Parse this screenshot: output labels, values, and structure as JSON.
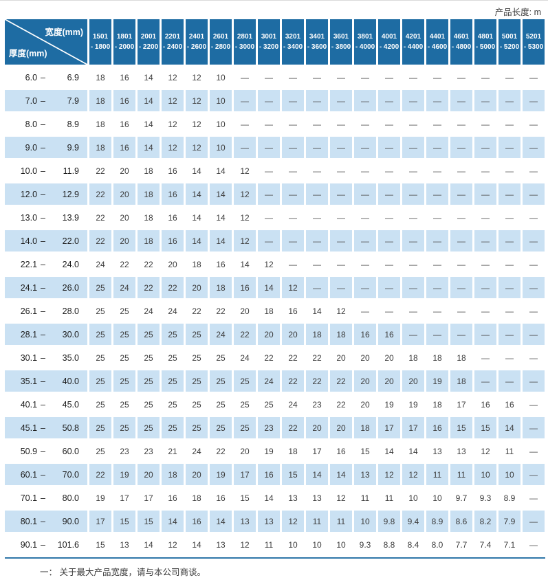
{
  "page": {
    "top_right_label": "产品长度: m",
    "footnote": "一： 关于最大产品宽度，请与本公司商谈。"
  },
  "colors": {
    "header_blue": "#1e6ca3",
    "stripe_blue": "#cae1f3",
    "rule_blue": "#2e76a8"
  },
  "table": {
    "corner": {
      "width_label": "宽度(mm)",
      "thickness_label": "厚度(mm)"
    },
    "width_columns": [
      {
        "line1": "1501",
        "line2": "- 1800"
      },
      {
        "line1": "1801",
        "line2": "- 2000"
      },
      {
        "line1": "2001",
        "line2": "- 2200"
      },
      {
        "line1": "2201",
        "line2": "- 2400"
      },
      {
        "line1": "2401",
        "line2": "- 2600"
      },
      {
        "line1": "2601",
        "line2": "- 2800"
      },
      {
        "line1": "2801",
        "line2": "- 3000"
      },
      {
        "line1": "3001",
        "line2": "- 3200"
      },
      {
        "line1": "3201",
        "line2": "- 3400"
      },
      {
        "line1": "3401",
        "line2": "- 3600"
      },
      {
        "line1": "3601",
        "line2": "- 3800"
      },
      {
        "line1": "3801",
        "line2": "- 4000"
      },
      {
        "line1": "4001",
        "line2": "- 4200"
      },
      {
        "line1": "4201",
        "line2": "- 4400"
      },
      {
        "line1": "4401",
        "line2": "- 4600"
      },
      {
        "line1": "4601",
        "line2": "- 4800"
      },
      {
        "line1": "4801",
        "line2": "- 5000"
      },
      {
        "line1": "5001",
        "line2": "- 5200"
      },
      {
        "line1": "5201",
        "line2": "- 5300"
      }
    ],
    "rows": [
      {
        "from": "6.0",
        "to": "6.9",
        "values": [
          "18",
          "16",
          "14",
          "12",
          "12",
          "10",
          "—",
          "—",
          "—",
          "—",
          "—",
          "—",
          "—",
          "—",
          "—",
          "—",
          "—",
          "—",
          "—"
        ]
      },
      {
        "from": "7.0",
        "to": "7.9",
        "values": [
          "18",
          "16",
          "14",
          "12",
          "12",
          "10",
          "—",
          "—",
          "—",
          "—",
          "—",
          "—",
          "—",
          "—",
          "—",
          "—",
          "—",
          "—",
          "—"
        ]
      },
      {
        "from": "8.0",
        "to": "8.9",
        "values": [
          "18",
          "16",
          "14",
          "12",
          "12",
          "10",
          "—",
          "—",
          "—",
          "—",
          "—",
          "—",
          "—",
          "—",
          "—",
          "—",
          "—",
          "—",
          "—"
        ]
      },
      {
        "from": "9.0",
        "to": "9.9",
        "values": [
          "18",
          "16",
          "14",
          "12",
          "12",
          "10",
          "—",
          "—",
          "—",
          "—",
          "—",
          "—",
          "—",
          "—",
          "—",
          "—",
          "—",
          "—",
          "—"
        ]
      },
      {
        "from": "10.0",
        "to": "11.9",
        "values": [
          "22",
          "20",
          "18",
          "16",
          "14",
          "14",
          "12",
          "—",
          "—",
          "—",
          "—",
          "—",
          "—",
          "—",
          "—",
          "—",
          "—",
          "—",
          "—"
        ]
      },
      {
        "from": "12.0",
        "to": "12.9",
        "values": [
          "22",
          "20",
          "18",
          "16",
          "14",
          "14",
          "12",
          "—",
          "—",
          "—",
          "—",
          "—",
          "—",
          "—",
          "—",
          "—",
          "—",
          "—",
          "—"
        ]
      },
      {
        "from": "13.0",
        "to": "13.9",
        "values": [
          "22",
          "20",
          "18",
          "16",
          "14",
          "14",
          "12",
          "—",
          "—",
          "—",
          "—",
          "—",
          "—",
          "—",
          "—",
          "—",
          "—",
          "—",
          "—"
        ]
      },
      {
        "from": "14.0",
        "to": "22.0",
        "values": [
          "22",
          "20",
          "18",
          "16",
          "14",
          "14",
          "12",
          "—",
          "—",
          "—",
          "—",
          "—",
          "—",
          "—",
          "—",
          "—",
          "—",
          "—",
          "—"
        ]
      },
      {
        "from": "22.1",
        "to": "24.0",
        "values": [
          "24",
          "22",
          "22",
          "20",
          "18",
          "16",
          "14",
          "12",
          "—",
          "—",
          "—",
          "—",
          "—",
          "—",
          "—",
          "—",
          "—",
          "—",
          "—"
        ]
      },
      {
        "from": "24.1",
        "to": "26.0",
        "values": [
          "25",
          "24",
          "22",
          "22",
          "20",
          "18",
          "16",
          "14",
          "12",
          "—",
          "—",
          "—",
          "—",
          "—",
          "—",
          "—",
          "—",
          "—",
          "—"
        ]
      },
      {
        "from": "26.1",
        "to": "28.0",
        "values": [
          "25",
          "25",
          "24",
          "24",
          "22",
          "22",
          "20",
          "18",
          "16",
          "14",
          "12",
          "—",
          "—",
          "—",
          "—",
          "—",
          "—",
          "—",
          "—"
        ]
      },
      {
        "from": "28.1",
        "to": "30.0",
        "values": [
          "25",
          "25",
          "25",
          "25",
          "25",
          "24",
          "22",
          "20",
          "20",
          "18",
          "18",
          "16",
          "16",
          "—",
          "—",
          "—",
          "—",
          "—",
          "—"
        ]
      },
      {
        "from": "30.1",
        "to": "35.0",
        "values": [
          "25",
          "25",
          "25",
          "25",
          "25",
          "25",
          "24",
          "22",
          "22",
          "22",
          "20",
          "20",
          "20",
          "18",
          "18",
          "18",
          "—",
          "—",
          "—"
        ]
      },
      {
        "from": "35.1",
        "to": "40.0",
        "values": [
          "25",
          "25",
          "25",
          "25",
          "25",
          "25",
          "25",
          "24",
          "22",
          "22",
          "22",
          "20",
          "20",
          "20",
          "19",
          "18",
          "—",
          "—",
          "—"
        ]
      },
      {
        "from": "40.1",
        "to": "45.0",
        "values": [
          "25",
          "25",
          "25",
          "25",
          "25",
          "25",
          "25",
          "25",
          "24",
          "23",
          "22",
          "20",
          "19",
          "19",
          "18",
          "17",
          "16",
          "16",
          "—"
        ]
      },
      {
        "from": "45.1",
        "to": "50.8",
        "values": [
          "25",
          "25",
          "25",
          "25",
          "25",
          "25",
          "25",
          "23",
          "22",
          "20",
          "20",
          "18",
          "17",
          "17",
          "16",
          "15",
          "15",
          "14",
          "—"
        ]
      },
      {
        "from": "50.9",
        "to": "60.0",
        "values": [
          "25",
          "23",
          "23",
          "21",
          "24",
          "22",
          "20",
          "19",
          "18",
          "17",
          "16",
          "15",
          "14",
          "14",
          "13",
          "13",
          "12",
          "11",
          "—"
        ]
      },
      {
        "from": "60.1",
        "to": "70.0",
        "values": [
          "22",
          "19",
          "20",
          "18",
          "20",
          "19",
          "17",
          "16",
          "15",
          "14",
          "14",
          "13",
          "12",
          "12",
          "11",
          "11",
          "10",
          "10",
          "—"
        ]
      },
      {
        "from": "70.1",
        "to": "80.0",
        "values": [
          "19",
          "17",
          "17",
          "16",
          "18",
          "16",
          "15",
          "14",
          "13",
          "13",
          "12",
          "11",
          "11",
          "10",
          "10",
          "9.7",
          "9.3",
          "8.9",
          "—"
        ]
      },
      {
        "from": "80.1",
        "to": "90.0",
        "values": [
          "17",
          "15",
          "15",
          "14",
          "16",
          "14",
          "13",
          "13",
          "12",
          "11",
          "11",
          "10",
          "9.8",
          "9.4",
          "8.9",
          "8.6",
          "8.2",
          "7.9",
          "—"
        ]
      },
      {
        "from": "90.1",
        "to": "101.6",
        "values": [
          "15",
          "13",
          "14",
          "12",
          "14",
          "13",
          "12",
          "11",
          "10",
          "10",
          "10",
          "9.3",
          "8.8",
          "8.4",
          "8.0",
          "7.7",
          "7.4",
          "7.1",
          "—"
        ]
      }
    ]
  }
}
